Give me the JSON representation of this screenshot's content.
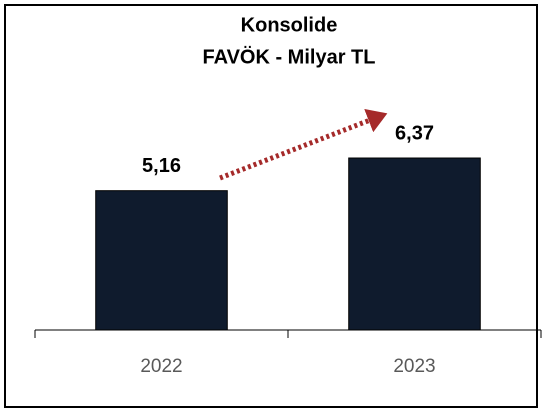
{
  "chart_data": {
    "type": "bar",
    "title": [
      "Konsolide",
      "FAVÖK - Milyar TL"
    ],
    "categories": [
      "2022",
      "2023"
    ],
    "values": [
      5.16,
      6.37
    ],
    "value_labels": [
      "5,16",
      "6,37"
    ],
    "color": "#0f1b2d",
    "ylim": [
      0,
      10
    ]
  }
}
